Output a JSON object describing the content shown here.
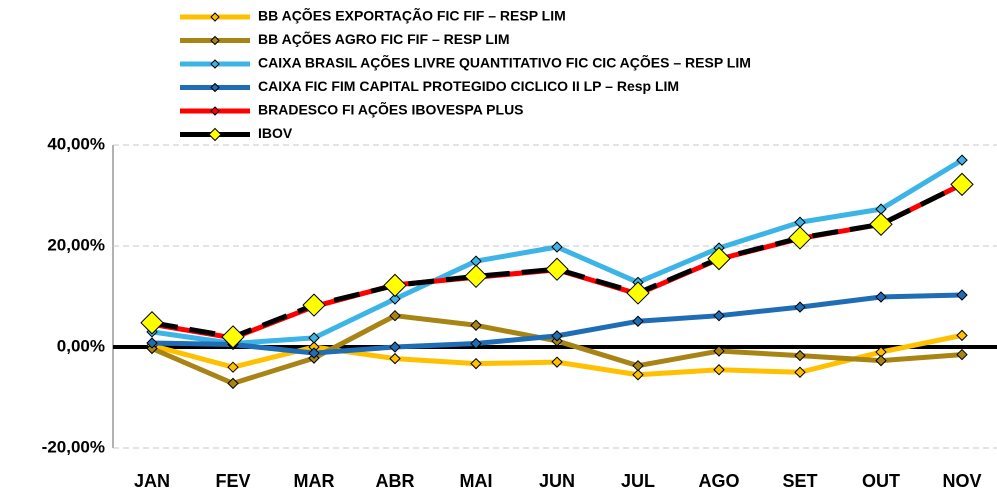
{
  "chart_data": {
    "type": "line",
    "categories": [
      "JAN",
      "FEV",
      "MAR",
      "ABR",
      "MAI",
      "JUN",
      "JUL",
      "AGO",
      "SET",
      "OUT",
      "NOV"
    ],
    "series": [
      {
        "name": "BB AÇÕES EXPORTAÇÃO FIC FIF – RESP LIM",
        "color": "#ffc000",
        "values": [
          0.3,
          -4,
          0,
          -2.3,
          -3.3,
          -3,
          -5.5,
          -4.5,
          -5,
          -1,
          2.3
        ]
      },
      {
        "name": "BB AÇÕES AGRO FIC FIF – RESP LIM",
        "color": "#a88414",
        "values": [
          -0.3,
          -7.2,
          -2.2,
          6.2,
          4.3,
          1.2,
          -3.7,
          -0.8,
          -1.7,
          -2.7,
          -1.5
        ]
      },
      {
        "name": "CAIXA BRASIL AÇÕES LIVRE QUANTITATIVO FIC CIC AÇÕES – RESP LIM",
        "color": "#3cb4e6",
        "values": [
          3,
          0.7,
          1.8,
          9.5,
          17,
          19.8,
          12.8,
          19.6,
          24.7,
          27.3,
          37
        ]
      },
      {
        "name": "CAIXA FIC FIM CAPITAL PROTEGIDO CICLICO II LP – Resp LIM",
        "color": "#1f6db5",
        "values": [
          0.8,
          0.5,
          -1.2,
          0,
          0.7,
          2.2,
          5.1,
          6.2,
          7.9,
          9.9,
          10.3
        ]
      },
      {
        "name": "BRADESCO FI AÇÕES IBOVESPA PLUS",
        "color": "#ff0000",
        "values": [
          4.5,
          1.8,
          8,
          12.3,
          13.8,
          15.3,
          10.5,
          17.4,
          21.5,
          24.3,
          32.2
        ]
      },
      {
        "name": "IBOV",
        "color": "#000000",
        "marker_color": "#ffff00",
        "line_style": "dashed",
        "values": [
          4.8,
          2,
          8.3,
          12.2,
          14,
          15.4,
          10.7,
          17.5,
          21.6,
          24.3,
          32.2
        ]
      }
    ],
    "ylim": [
      -20,
      40
    ],
    "yticks": [
      {
        "value": -20,
        "label": "-20,00%"
      },
      {
        "value": 0,
        "label": "0,00%"
      },
      {
        "value": 20,
        "label": "20,00%"
      },
      {
        "value": 40,
        "label": "40,00%"
      }
    ],
    "grid": true,
    "legend": "top"
  }
}
